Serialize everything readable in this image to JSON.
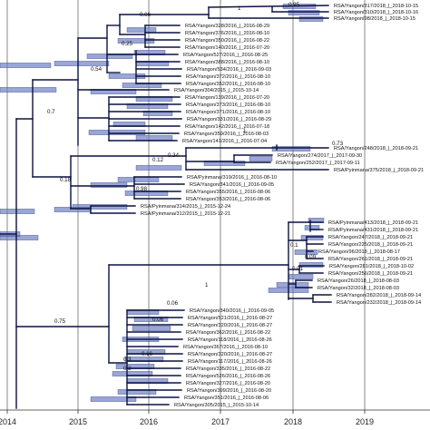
{
  "axis": {
    "years": [
      "2014",
      "2015",
      "2016",
      "2017",
      "2018",
      "2019"
    ]
  },
  "supports": [
    "0.95",
    "1",
    "0.06",
    "0.25",
    "0.54",
    "0.7",
    "0.18",
    "0.12",
    "0.34",
    "1",
    "0.73",
    "0.98",
    "0.09",
    "0.01",
    "0.1",
    "1",
    "0.75",
    "0.06",
    "0.06",
    "0.3",
    "0.16",
    "0.2"
  ],
  "tips": [
    "RSA/Yangon/317/2018_|_2018-10-15",
    "RSA/Yangon/310/2018_|_2018-10-16",
    "RSA/Yangon/98/2018_|_2018-10-15",
    "RSA/Yangon/328/2016_|_2016-08-29",
    "RSA/Yangon/376/2016_|_2016-08-10",
    "RSA/Yangon/350/2016_|_2016-08-22",
    "RSA/Yangon/140/2016_|_2016-07-20",
    "RSA/Yangon/527/2016_|_2016-08-25",
    "RSA/Yangon/388/2016_|_2016-08-10",
    "RSA/Yangon/534/2016_|_2016-09-03",
    "RSA/Yangon/372/2016_|_2016-08-10",
    "RSA/Yangon/352/2016_|_2016-08-10",
    "RSA/Yangon/304/2015_|_2015-10-14",
    "RSA/Yangon/139/2016_|_2016-07-20",
    "RSA/Yangon/373/2016_|_2016-08-10",
    "RSA/Yangon/371/2016_|_2016-08-10",
    "RSA/Yangon/331/2016_|_2016-08-29",
    "RSA/Yangon/142/2016_|_2016-07-18",
    "RSA/Yangon/359/2016_|_2016-08-03",
    "RSA/Yangon/141/2016_|_2016-07-04",
    "RSA/Yangon/248/2018_|_2018-09-21",
    "RSA/Yangon/274/2017_|_2017-09-30",
    "RSA/Yangon/252/2017_|_2017-09-11",
    "RSA/Pyinmana/375/2018_|_2018-09-21",
    "RSA/Pyinmana/319/2016_|_2016-08-10",
    "RSA/Yangon/341/2016_|_2016-09-05",
    "RSA/Yangon/355/2016_|_2016-08-06",
    "RSA/Yangon/353/2016_|_2016-08-06",
    "RSA/Pyinmana/314/2015_|_2015-12-24",
    "RSA/Pyinmana/312/2015_|_2015-12-21",
    "RSA/Pyinmana/413/2018_|_2018-09-21",
    "RSA/Pyinmana/431/2018_|_2018-09-21",
    "RSA/Yangon/247/2018_|_2018-09-21",
    "RSA/Yangon/225/2018_|_2018-09-21",
    "RSA/Yangon/96/2018_|_2018-08-17",
    "RSA/Yangon/261/2018_|_2018-09-21",
    "RSA/Yangon/281/2018_|_2018-10-02",
    "RSA/Yangon/256/2018_|_2018-09-21",
    "RSA/Yangon/26/2018_|_2018-08-03",
    "RSA/Yangon/32/2018_|_2018-08-03",
    "RSA/Yangon/282/2018_|_2018-09-14",
    "RSA/Yangon/232/2018_|_2018-09-14",
    "RSA/Yangon/340/2016_|_2016-09-05",
    "RSA/Yangon/521/2016_|_2016-08-27",
    "RSA/Yangon/320/2016_|_2016-08-27",
    "RSA/Yangon/362/2016_|_2016-08-22",
    "RSA/Yangon/118/2016_|_2016-08-26",
    "RSA/Yangon/367/2016_|_2016-08-10",
    "RSA/Yangon/320/2016_|_2016-08-27",
    "RSA/Yangon/117/2016_|_2016-08-26",
    "RSA/Yangon/335/2016_|_2016-08-22",
    "RSA/Yangon/526/2016_|_2016-08-26",
    "RSA/Yangon/327/2016_|_2016-08-20",
    "RSA/Yangon/399/2016_|_2016-08-20",
    "RSA/Yangon/351/2016_|_2016-08-06",
    "RSA/Yangon/305/2015_|_2015-10-14"
  ]
}
